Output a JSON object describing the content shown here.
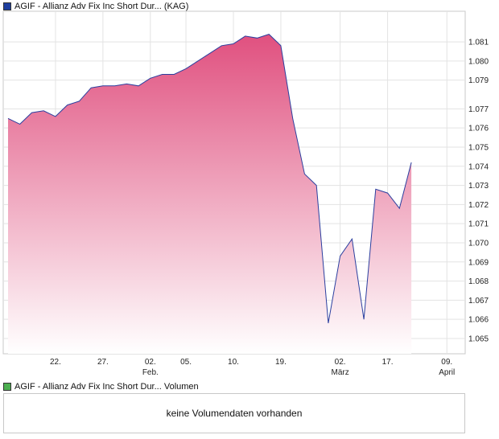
{
  "price_legend": {
    "label": "AGIF - Allianz Adv Fix Inc Short Dur... (KAG)",
    "color": "#1f3f9f"
  },
  "volume_legend": {
    "label": "AGIF - Allianz Adv Fix Inc Short Dur... Volumen",
    "color": "#4caf50"
  },
  "volume_panel": {
    "message": "keine Volumendaten vorhanden"
  },
  "chart_data": {
    "type": "area",
    "series": [
      {
        "values": [
          1.077,
          1.0767,
          1.0773,
          1.0774,
          1.0771,
          1.0777,
          1.0779,
          1.0786,
          1.0787,
          1.0787,
          1.0788,
          1.0787,
          1.0791,
          1.0793,
          1.0793,
          1.0796,
          1.08,
          1.0804,
          1.0808,
          1.0809,
          1.0813,
          1.0812,
          1.0814,
          1.0808,
          1.077,
          1.0741,
          1.0735,
          1.0663,
          1.0698,
          1.0707,
          1.0665,
          1.0733,
          1.0731,
          1.0723,
          1.0747
        ]
      }
    ],
    "x_ticks": [
      {
        "index": 4,
        "day": "22.",
        "month": ""
      },
      {
        "index": 8,
        "day": "27.",
        "month": ""
      },
      {
        "index": 12,
        "day": "02.",
        "month": "Feb."
      },
      {
        "index": 15,
        "day": "05.",
        "month": ""
      },
      {
        "index": 19,
        "day": "10.",
        "month": ""
      },
      {
        "index": 23,
        "day": "19.",
        "month": ""
      },
      {
        "index": 28,
        "day": "02.",
        "month": "März"
      },
      {
        "index": 32,
        "day": "17.",
        "month": ""
      },
      {
        "index": 37,
        "day": "09.",
        "month": "April"
      }
    ],
    "y_ticks": [
      "1.081",
      "1.080",
      "1.079",
      "1.077",
      "1.076",
      "1.075",
      "1.074",
      "1.073",
      "1.072",
      "1.071",
      "1.070",
      "1.069",
      "1.068",
      "1.067",
      "1.066",
      "1.065"
    ],
    "y_tick_values": [
      1.081,
      1.08,
      1.079,
      1.0775,
      1.0765,
      1.0755,
      1.0745,
      1.0735,
      1.0725,
      1.0715,
      1.0705,
      1.0695,
      1.0685,
      1.0675,
      1.0665,
      1.0655
    ],
    "ylim": [
      1.0647,
      1.0826
    ],
    "grid": true,
    "line_color": "#2b3f9f",
    "fill_top_color": "#e0507f",
    "fill_bottom_color": "#ffffff"
  }
}
